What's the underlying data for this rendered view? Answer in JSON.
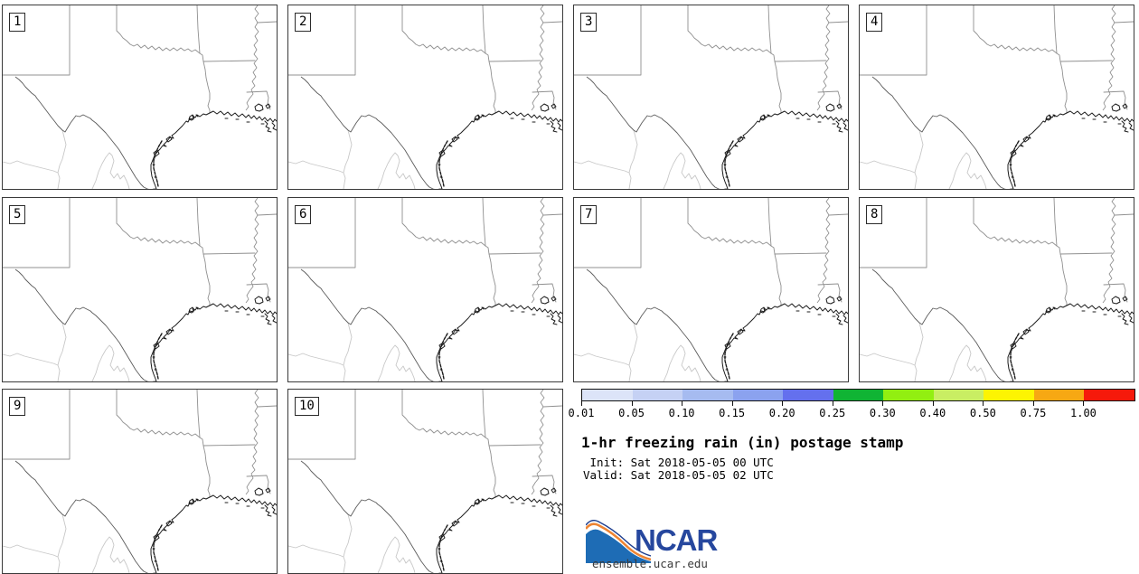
{
  "figure": {
    "title": "1-hr freezing rain (in) postage stamp",
    "init_line": " Init: Sat 2018-05-05 00 UTC",
    "valid_line": "Valid: Sat 2018-05-05 02 UTC"
  },
  "panels": [
    {
      "label": "1"
    },
    {
      "label": "2"
    },
    {
      "label": "3"
    },
    {
      "label": "4"
    },
    {
      "label": "5"
    },
    {
      "label": "6"
    },
    {
      "label": "7"
    },
    {
      "label": "8"
    },
    {
      "label": "9"
    },
    {
      "label": "10"
    }
  ],
  "colorbar": {
    "labels": [
      "0.01",
      "0.05",
      "0.10",
      "0.15",
      "0.20",
      "0.25",
      "0.30",
      "0.40",
      "0.50",
      "0.75",
      "1.00"
    ],
    "colors": [
      "#dce4f8",
      "#c5d1f4",
      "#a6bbf0",
      "#8ba2ef",
      "#6470ee",
      "#10b434",
      "#92ef11",
      "#c9ee63",
      "#fdf402",
      "#f7a813",
      "#f6190b"
    ]
  },
  "logo": {
    "text": "NCAR",
    "url": "ensemble.ucar.edu",
    "navy": "#26479e",
    "blue": "#1e6cb5",
    "orange": "#ee8433"
  }
}
